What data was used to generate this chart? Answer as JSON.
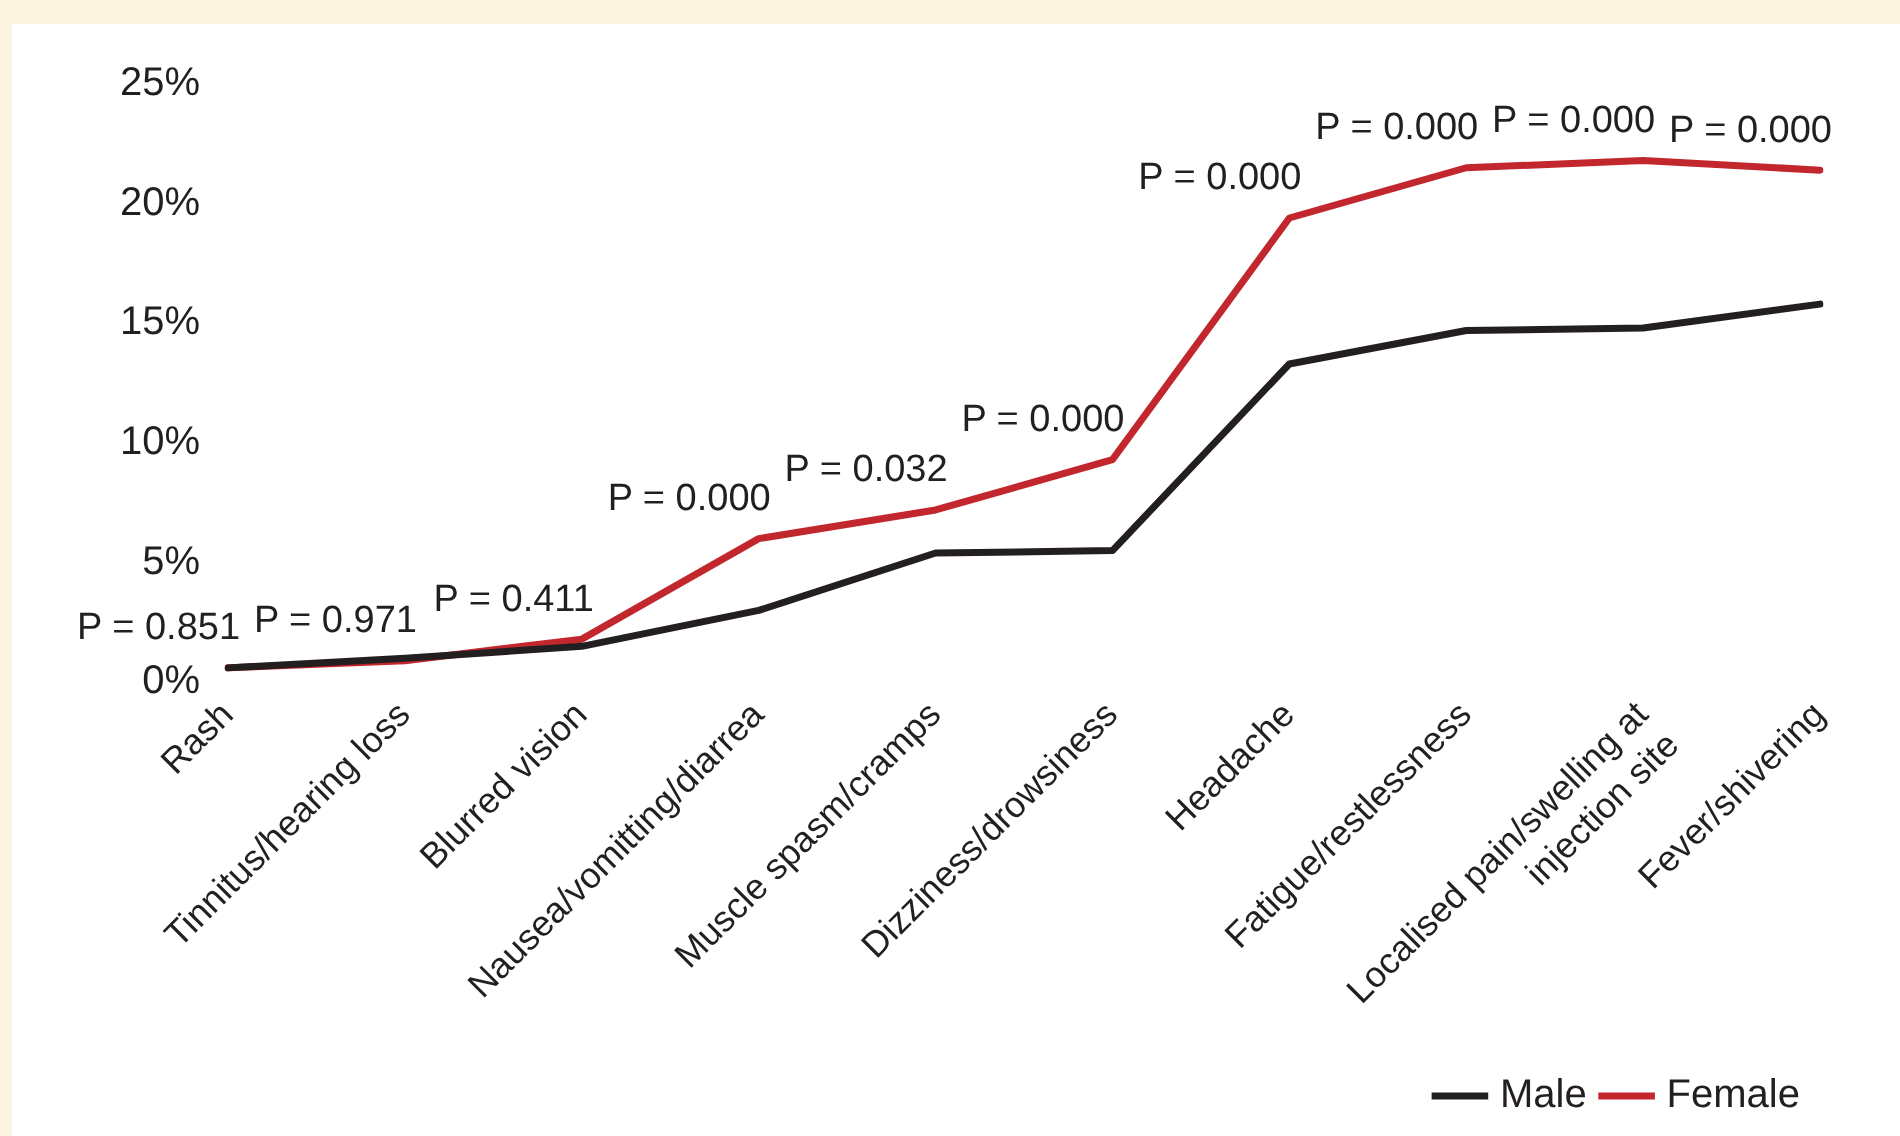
{
  "chart_data": {
    "type": "line",
    "categories": [
      "Rash",
      "Tinnitus/hearing loss",
      "Blurred vision",
      "Nausea/vomitting/diarrea",
      "Muscle spasm/cramps",
      "Dizziness/drowsiness",
      "Headache",
      "Fatigue/restlessness",
      "Localised pain/swelling at injection site",
      "Fever/shivering"
    ],
    "series": [
      {
        "name": "Male",
        "color": "#231f20",
        "values": [
          0.6,
          1.0,
          1.5,
          3.0,
          5.4,
          5.5,
          13.3,
          14.7,
          14.8,
          15.8
        ]
      },
      {
        "name": "Female",
        "color": "#c1272d",
        "values": [
          0.6,
          0.9,
          1.8,
          6.0,
          7.2,
          9.3,
          19.4,
          21.5,
          21.8,
          21.4
        ]
      }
    ],
    "ylim": [
      0,
      25
    ],
    "yticks": [
      {
        "value": 0,
        "label": "0%"
      },
      {
        "value": 5,
        "label": "5%"
      },
      {
        "value": 10,
        "label": "10%"
      },
      {
        "value": 15,
        "label": "15%"
      },
      {
        "value": 20,
        "label": "20%"
      },
      {
        "value": 25,
        "label": "25%"
      }
    ],
    "annotations": [
      {
        "text": "P = 0.851",
        "x": "Rash",
        "y": 0.6
      },
      {
        "text": "P = 0.971",
        "x": "Tinnitus/hearing loss",
        "y": 0.9
      },
      {
        "text": "P = 0.411",
        "x": "Blurred vision",
        "y": 1.8
      },
      {
        "text": "P = 0.000",
        "x": "Nausea/vomitting/diarrea",
        "y": 6.0
      },
      {
        "text": "P = 0.032",
        "x": "Muscle spasm/cramps",
        "y": 7.2
      },
      {
        "text": "P = 0.000",
        "x": "Dizziness/drowsiness",
        "y": 9.3
      },
      {
        "text": "P = 0.000",
        "x": "Headache",
        "y": 19.4
      },
      {
        "text": "P = 0.000",
        "x": "Fatigue/restlessness",
        "y": 21.5
      },
      {
        "text": "P = 0.000",
        "x": "Localised pain/swelling at injection site",
        "y": 21.8
      },
      {
        "text": "P = 0.000",
        "x": "Fever/shivering",
        "y": 21.4
      }
    ],
    "grid": false,
    "legend": "bottom right",
    "marker": "none",
    "line_style": "solid"
  }
}
